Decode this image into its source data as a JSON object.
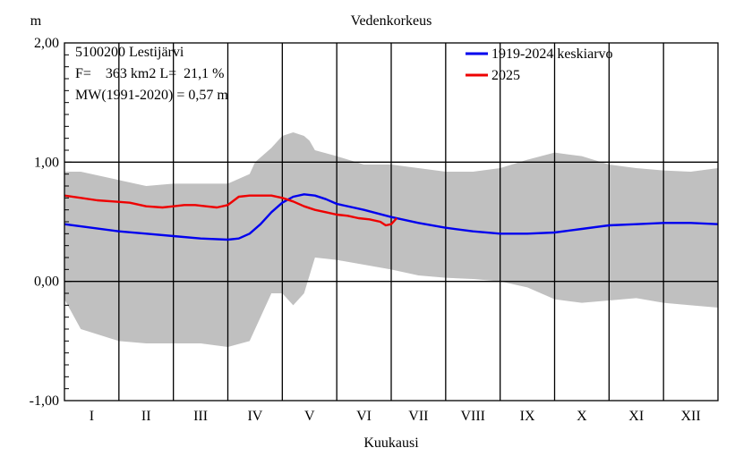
{
  "chart_data": {
    "type": "line",
    "title": "Vedenkorkeus",
    "ylabel": "m",
    "xlabel": "Kuukausi",
    "ylim": [
      -1.0,
      2.0
    ],
    "yticks": [
      {
        "value": 2.0,
        "label": "2,00"
      },
      {
        "value": 1.0,
        "label": "1,00"
      },
      {
        "value": 0.0,
        "label": "0,00"
      },
      {
        "value": -1.0,
        "label": "-1,00"
      }
    ],
    "categories": [
      "I",
      "II",
      "III",
      "IV",
      "V",
      "VI",
      "VII",
      "VIII",
      "IX",
      "X",
      "XI",
      "XII"
    ],
    "annotations": [
      "5100200 Lestijärvi",
      "F=    363 km2 L=  21,1 %",
      "MW(1991-2020) = 0,57 m"
    ],
    "legend_position": "top-right",
    "band": {
      "color": "#c0c0c0",
      "x": [
        0,
        0.3,
        1,
        1.5,
        2,
        2.5,
        3,
        3.4,
        3.5,
        3.8,
        4.0,
        4.2,
        4.4,
        4.5,
        4.6,
        5,
        5.5,
        6,
        6.5,
        7,
        7.5,
        8,
        8.5,
        9,
        9.5,
        10,
        10.5,
        11,
        11.5,
        12
      ],
      "upper": [
        0.92,
        0.92,
        0.85,
        0.8,
        0.82,
        0.82,
        0.82,
        0.9,
        1.0,
        1.12,
        1.22,
        1.25,
        1.22,
        1.18,
        1.1,
        1.05,
        0.98,
        0.98,
        0.95,
        0.92,
        0.92,
        0.95,
        1.02,
        1.08,
        1.05,
        0.98,
        0.95,
        0.93,
        0.92,
        0.95
      ],
      "lower": [
        -0.15,
        -0.4,
        -0.5,
        -0.52,
        -0.52,
        -0.52,
        -0.55,
        -0.5,
        -0.4,
        -0.1,
        -0.1,
        -0.2,
        -0.1,
        0.05,
        0.2,
        0.18,
        0.14,
        0.1,
        0.05,
        0.03,
        0.02,
        0.0,
        -0.05,
        -0.15,
        -0.18,
        -0.16,
        -0.14,
        -0.18,
        -0.2,
        -0.22
      ]
    },
    "series": [
      {
        "name": "1919-2024 keskiarvo",
        "color": "#0000ee",
        "x": [
          0,
          0.5,
          1,
          1.5,
          2,
          2.5,
          3,
          3.2,
          3.4,
          3.6,
          3.8,
          4.0,
          4.2,
          4.4,
          4.6,
          4.8,
          5.0,
          5.5,
          6,
          6.5,
          7,
          7.5,
          8,
          8.5,
          9,
          9.5,
          10,
          10.5,
          11,
          11.5,
          12
        ],
        "values": [
          0.48,
          0.45,
          0.42,
          0.4,
          0.38,
          0.36,
          0.35,
          0.36,
          0.4,
          0.48,
          0.58,
          0.66,
          0.71,
          0.73,
          0.72,
          0.69,
          0.65,
          0.6,
          0.54,
          0.49,
          0.45,
          0.42,
          0.4,
          0.4,
          0.41,
          0.44,
          0.47,
          0.48,
          0.49,
          0.49,
          0.48
        ]
      },
      {
        "name": "2025",
        "color": "#ee0000",
        "x": [
          0,
          0.3,
          0.6,
          0.9,
          1.2,
          1.5,
          1.8,
          2.0,
          2.2,
          2.4,
          2.6,
          2.8,
          3.0,
          3.2,
          3.4,
          3.6,
          3.8,
          4.0,
          4.2,
          4.4,
          4.6,
          4.8,
          5.0,
          5.2,
          5.4,
          5.6,
          5.8,
          5.9,
          6.0,
          6.1
        ],
        "values": [
          0.72,
          0.7,
          0.68,
          0.67,
          0.66,
          0.63,
          0.62,
          0.63,
          0.64,
          0.64,
          0.63,
          0.62,
          0.64,
          0.71,
          0.72,
          0.72,
          0.72,
          0.7,
          0.67,
          0.63,
          0.6,
          0.58,
          0.56,
          0.55,
          0.53,
          0.52,
          0.5,
          0.47,
          0.48,
          0.53
        ]
      }
    ]
  }
}
